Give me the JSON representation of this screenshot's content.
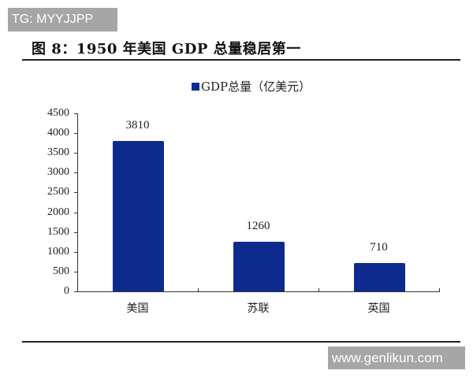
{
  "watermark_top": "TG: MYYJJPP",
  "watermark_bottom": "www.genlikun.com",
  "title": "图 8：1950 年美国 GDP 总量稳居第一",
  "legend": {
    "label": "GDP总量（亿美元）",
    "color": "#0f2a8f"
  },
  "y_ticks": [
    "0",
    "500",
    "1000",
    "1500",
    "2000",
    "2500",
    "3000",
    "3500",
    "4000",
    "4500"
  ],
  "categories": [
    "美国",
    "苏联",
    "英国"
  ],
  "values": [
    "3810",
    "1260",
    "710"
  ],
  "chart_data": {
    "type": "bar",
    "title": "图 8：1950 年美国 GDP 总量稳居第一",
    "categories": [
      "美国",
      "苏联",
      "英国"
    ],
    "series": [
      {
        "name": "GDP总量（亿美元）",
        "values": [
          3810,
          1260,
          710
        ],
        "color": "#0f2a8f"
      }
    ],
    "xlabel": "",
    "ylabel": "",
    "ylim": [
      0,
      4500
    ],
    "yticks": [
      0,
      500,
      1000,
      1500,
      2000,
      2500,
      3000,
      3500,
      4000,
      4500
    ],
    "grid": false,
    "legend_position": "top",
    "data_labels": true
  }
}
